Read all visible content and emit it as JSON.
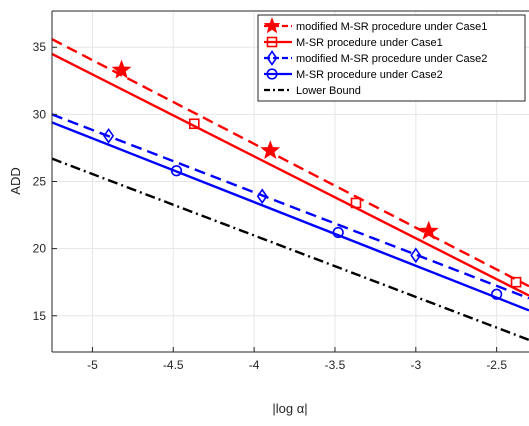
{
  "chart_data": {
    "type": "line",
    "xlabel": "|log α|",
    "ylabel": "ADD",
    "xlim": [
      -5.25,
      -2.3
    ],
    "ylim": [
      12.3,
      37.7
    ],
    "xticks": [
      -5,
      -4.5,
      -4,
      -3.5,
      -3,
      -2.5
    ],
    "xtick_labels": [
      "-5",
      "-4.5",
      "-4",
      "-3.5",
      "-3",
      "-2.5"
    ],
    "yticks": [
      15,
      20,
      25,
      30,
      35
    ],
    "ytick_labels": [
      "15",
      "20",
      "25",
      "30",
      "35"
    ],
    "grid": true,
    "legend_position": "top-right",
    "series": [
      {
        "name": "modified M-SR procedure under Case1",
        "color": "#ff0000",
        "line_style": "dashed",
        "marker": "star",
        "x": [
          -5.25,
          -2.3
        ],
        "y": [
          35.6,
          17.2
        ],
        "markers": [
          [
            -4.82,
            33.3
          ],
          [
            -3.9,
            27.3
          ],
          [
            -2.92,
            21.3
          ]
        ]
      },
      {
        "name": "M-SR procedure under Case1",
        "color": "#ff0000",
        "line_style": "solid",
        "marker": "square",
        "x": [
          -5.25,
          -2.3
        ],
        "y": [
          34.5,
          16.5
        ],
        "markers": [
          [
            -4.37,
            29.3
          ],
          [
            -3.37,
            23.4
          ],
          [
            -2.38,
            17.5
          ]
        ]
      },
      {
        "name": "modified M-SR procedure under Case2",
        "color": "#0000ff",
        "line_style": "dashed",
        "marker": "diamond",
        "x": [
          -5.25,
          -2.3
        ],
        "y": [
          30.0,
          16.3
        ],
        "markers": [
          [
            -4.9,
            28.4
          ],
          [
            -3.95,
            23.9
          ],
          [
            -3.0,
            19.5
          ]
        ]
      },
      {
        "name": "M-SR procedure under Case2",
        "color": "#0000ff",
        "line_style": "solid",
        "marker": "circle",
        "x": [
          -5.25,
          -2.3
        ],
        "y": [
          29.4,
          15.4
        ],
        "markers": [
          [
            -4.48,
            25.8
          ],
          [
            -3.48,
            21.2
          ],
          [
            -2.5,
            16.6
          ]
        ]
      },
      {
        "name": "Lower Bound",
        "color": "#000000",
        "line_style": "dashdot",
        "marker": "none",
        "x": [
          -5.25,
          -2.3
        ],
        "y": [
          26.7,
          13.2
        ],
        "markers": []
      }
    ]
  }
}
